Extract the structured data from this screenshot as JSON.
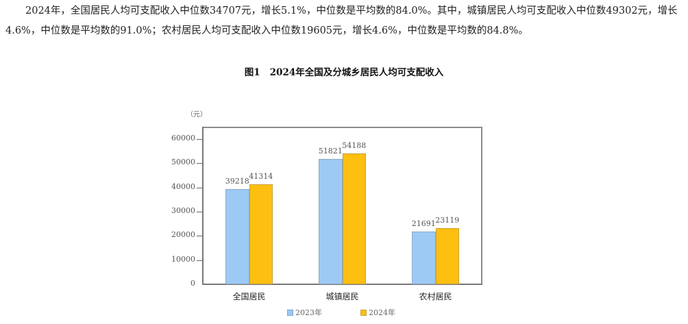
{
  "paragraph": {
    "line1": "2024年，全国居民人均可支配收入中位数34707元，增长5.1%，中位数是平均数的84.0%。其中，城镇居民人均可支配收入中位数49302元，增长",
    "line2": "4.6%，中位数是平均数的91.0%；农村居民人均可支配收入中位数19605元，增长4.6%，中位数是平均数的84.8%。"
  },
  "figure": {
    "number": "图1",
    "title": "2024年全国及分城乡居民人均可支配收入",
    "unit": "（元）"
  },
  "legend": [
    {
      "label": "2023年",
      "color": "#9ccaf5"
    },
    {
      "label": "2024年",
      "color": "#fdbf10"
    }
  ],
  "yticks": [
    "60000",
    "50000",
    "40000",
    "30000",
    "20000",
    "10000",
    "0"
  ],
  "categories": [
    "全国居民",
    "城镇居民",
    "农村居民"
  ],
  "values_2023": [
    "39218",
    "51821",
    "21691"
  ],
  "values_2024": [
    "41314",
    "54188",
    "23119"
  ],
  "chart_data": {
    "type": "bar",
    "title": "图1 2024年全国及分城乡居民人均可支配收入",
    "categories": [
      "全国居民",
      "城镇居民",
      "农村居民"
    ],
    "series": [
      {
        "name": "2023年",
        "values": [
          39218,
          51821,
          21691
        ],
        "color": "#9ccaf5"
      },
      {
        "name": "2024年",
        "values": [
          41314,
          54188,
          23119
        ],
        "color": "#fdbf10"
      }
    ],
    "xlabel": "",
    "ylabel": "（元）",
    "ylim": [
      0,
      60000
    ],
    "yticks": [
      0,
      10000,
      20000,
      30000,
      40000,
      50000,
      60000
    ],
    "grid": false,
    "legend_position": "bottom"
  }
}
